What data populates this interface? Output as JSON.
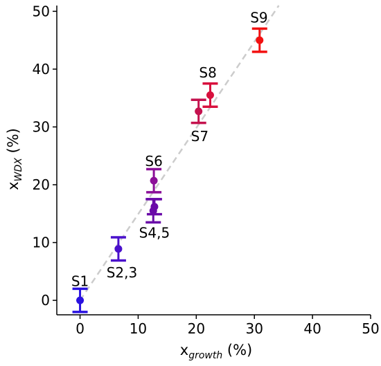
{
  "chart_data": {
    "type": "scatter",
    "title": "",
    "xlabel": {
      "main": "x",
      "sub": "growth",
      "unit": " (%)"
    },
    "ylabel": {
      "main": "x",
      "sub": "WDX",
      "unit": " (%)"
    },
    "xlim": [
      -4,
      50
    ],
    "ylim": [
      -2.5,
      51
    ],
    "xticks": [
      0,
      10,
      20,
      30,
      40,
      50
    ],
    "yticks": [
      0,
      10,
      20,
      30,
      40,
      50
    ],
    "xtick_labels": [
      "0",
      "10",
      "20",
      "30",
      "40",
      "50"
    ],
    "ytick_labels": [
      "0",
      "10",
      "20",
      "30",
      "40",
      "50"
    ],
    "grid": false,
    "reference_line": {
      "style": "dashed",
      "color": "#cccccc",
      "from": [
        0,
        0
      ],
      "to": [
        34.2,
        51
      ]
    },
    "points": [
      {
        "x": 0.0,
        "y": 0.0,
        "err": 2.0,
        "color": "#2a12e0"
      },
      {
        "x": 6.6,
        "y": 8.9,
        "err": 2.0,
        "color": "#4a10cc"
      },
      {
        "x": 12.6,
        "y": 15.5,
        "err": 2.0,
        "color": "#6a0aa8"
      },
      {
        "x": 12.8,
        "y": 16.2,
        "err": 1.3,
        "color": "#6a0aa8"
      },
      {
        "x": 12.7,
        "y": 20.7,
        "err": 2.0,
        "color": "#8b0f98"
      },
      {
        "x": 20.4,
        "y": 32.7,
        "err": 2.0,
        "color": "#c4124e"
      },
      {
        "x": 22.4,
        "y": 35.5,
        "err": 2.0,
        "color": "#d8103d"
      },
      {
        "x": 30.9,
        "y": 45.0,
        "err": 2.0,
        "color": "#f21010"
      }
    ],
    "labels": [
      {
        "text": "S1",
        "x": 0.0,
        "y": 3.3
      },
      {
        "text": "S2,3",
        "x": 7.2,
        "y": 4.8
      },
      {
        "text": "S4,5",
        "x": 12.8,
        "y": 11.7
      },
      {
        "text": "S6",
        "x": 12.7,
        "y": 24.1
      },
      {
        "text": "S7",
        "x": 20.6,
        "y": 28.4
      },
      {
        "text": "S8",
        "x": 22.0,
        "y": 39.4
      },
      {
        "text": "S9",
        "x": 30.8,
        "y": 48.9
      }
    ]
  }
}
